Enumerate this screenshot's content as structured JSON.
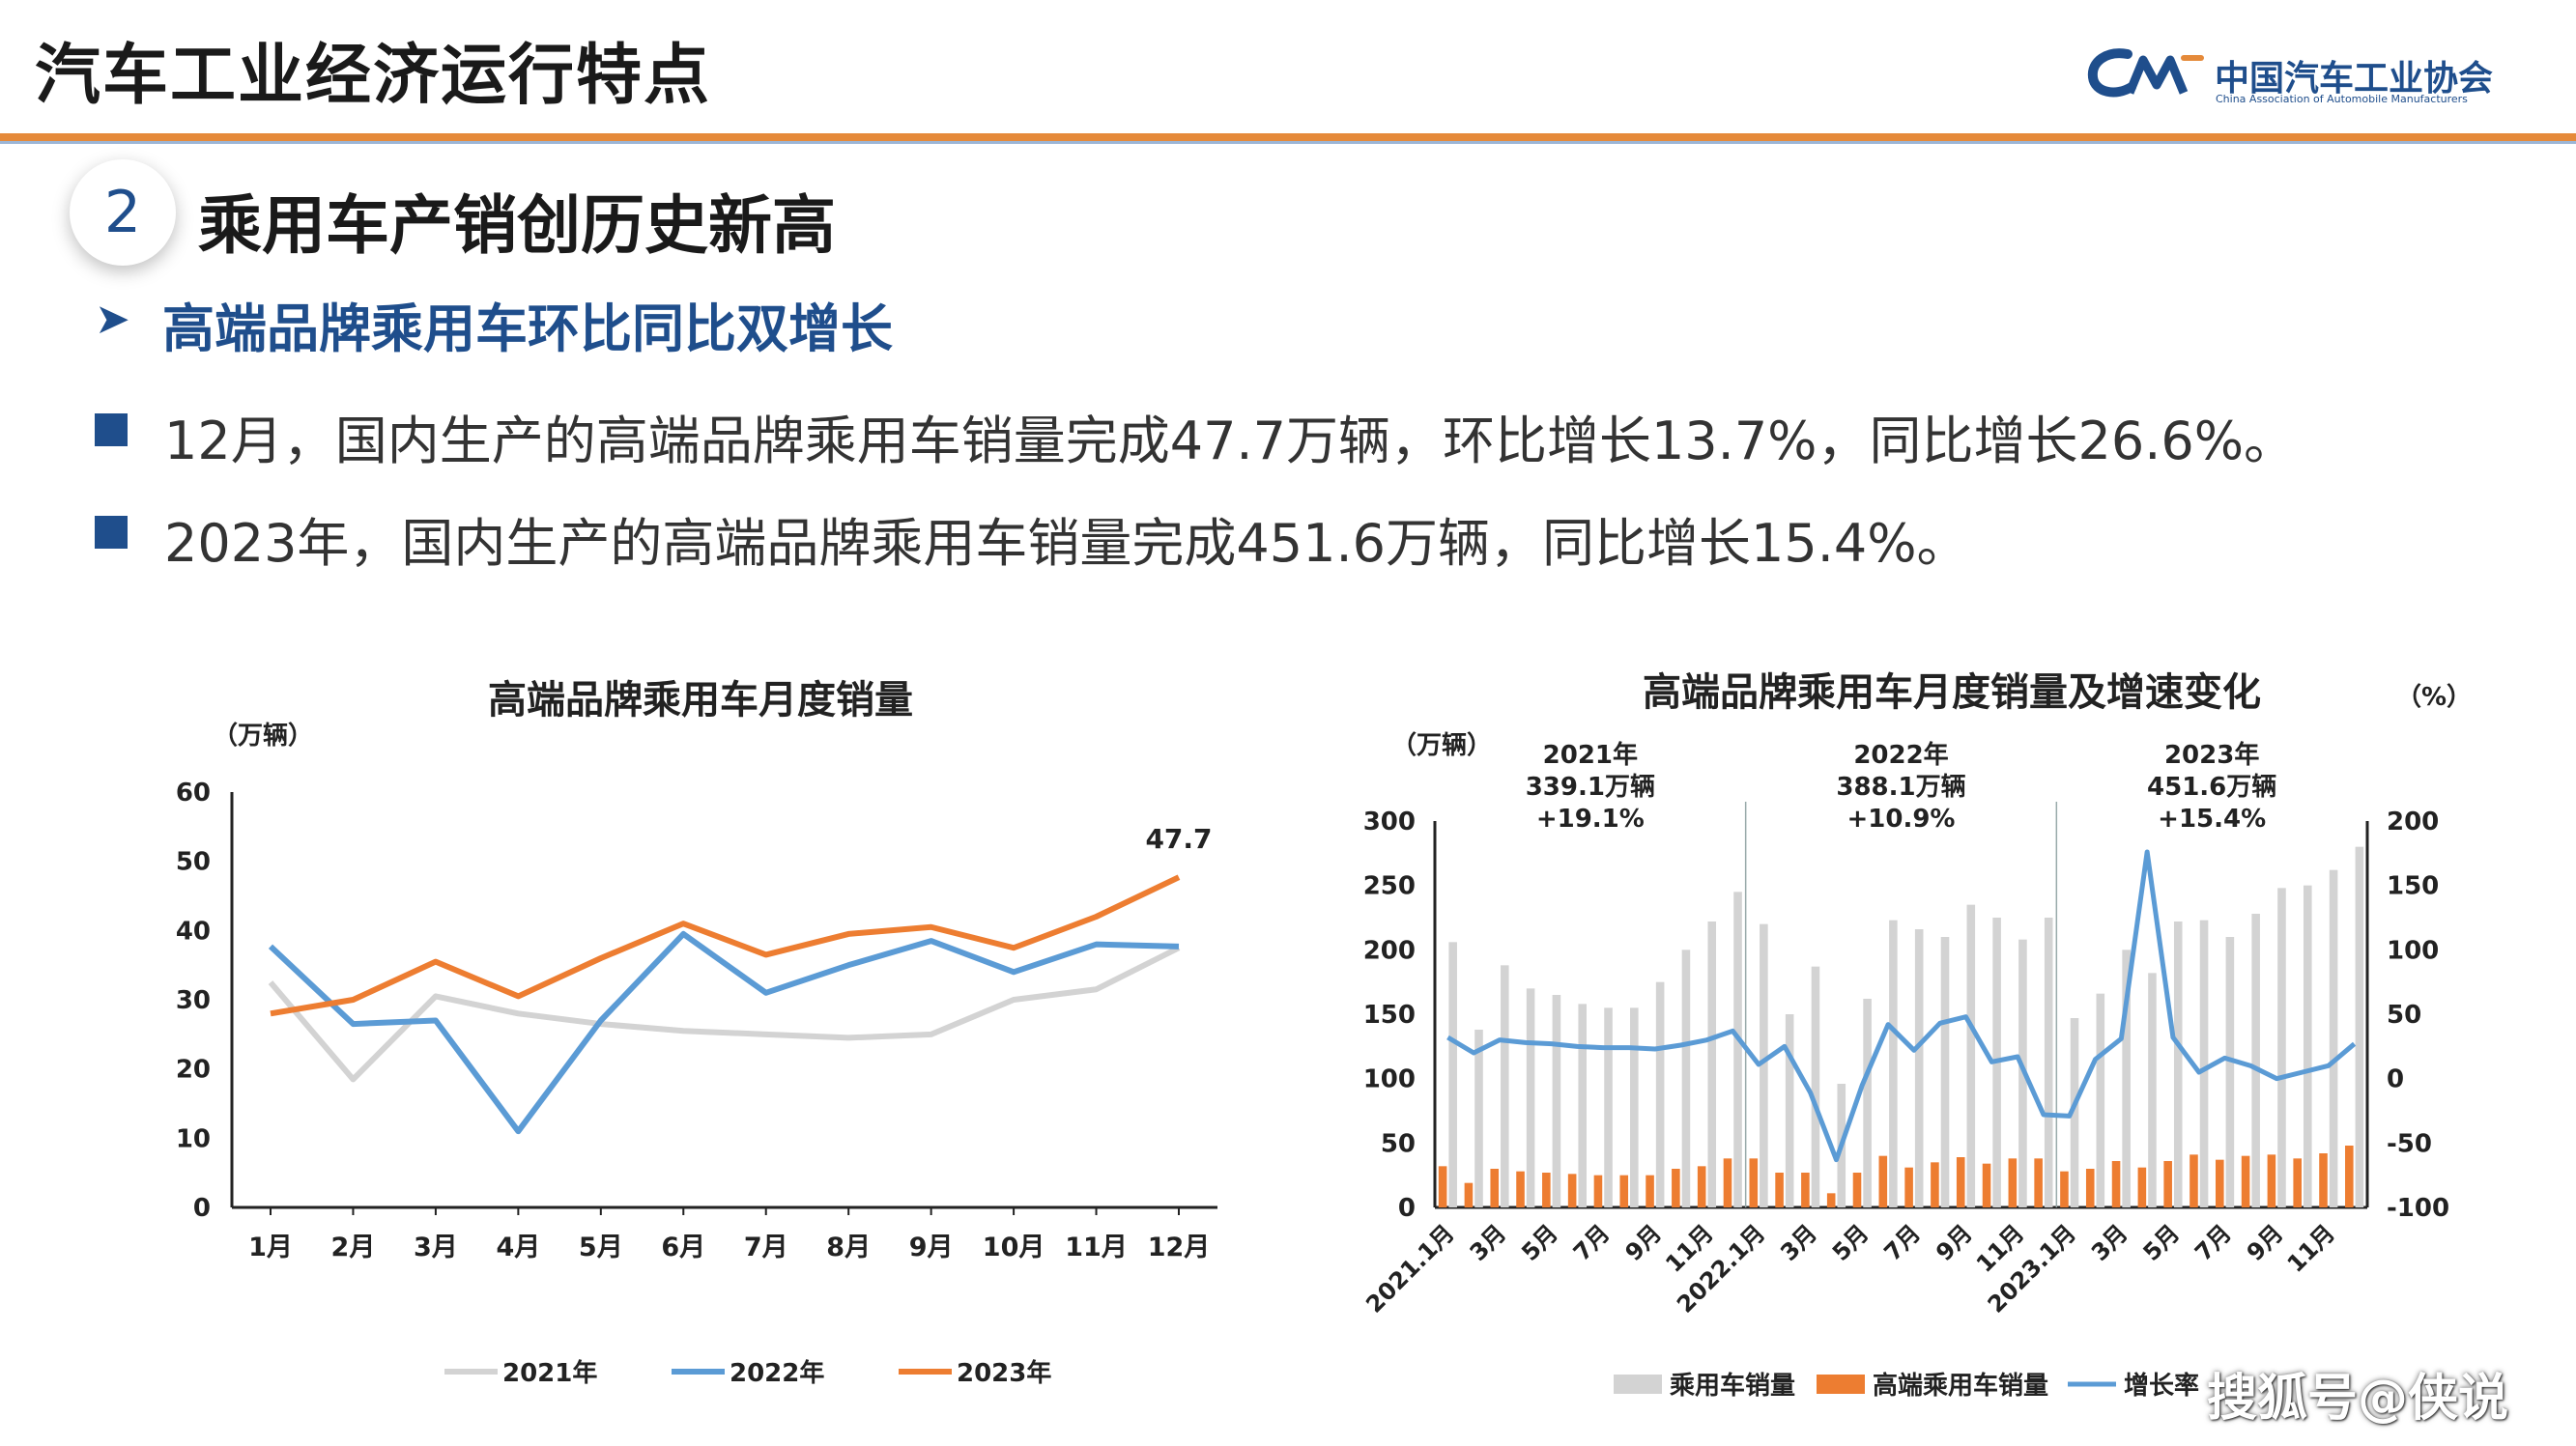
{
  "header": {
    "title": "汽车工业经济运行特点"
  },
  "logo": {
    "name_cn": "中国汽车工业协会",
    "name_en": "China Association of Automobile Manufacturers"
  },
  "section": {
    "number": "2",
    "title": "乘用车产销创历史新高"
  },
  "subtitle": "高端品牌乘用车环比同比双增长",
  "bullets": [
    "12月，国内生产的高端品牌乘用车销量完成47.7万辆，环比增长13.7%，同比增长26.6%。",
    "2023年，国内生产的高端品牌乘用车销量完成451.6万辆，同比增长15.4%。"
  ],
  "colors": {
    "accent": "#e58a3a",
    "brand": "#1f4e8c",
    "gray": "#d3d3d3",
    "blue": "#5b9bd5",
    "orange": "#ed7d31"
  },
  "chart_data": [
    {
      "type": "line",
      "title": "高端品牌乘用车月度销量",
      "unit": "（万辆）",
      "categories": [
        "1月",
        "2月",
        "3月",
        "4月",
        "5月",
        "6月",
        "7月",
        "8月",
        "9月",
        "10月",
        "11月",
        "12月"
      ],
      "ylim": [
        0,
        60
      ],
      "yticks": [
        0,
        10,
        20,
        30,
        40,
        50,
        60
      ],
      "series": [
        {
          "name": "2021年",
          "values": [
            32.5,
            18.5,
            30.5,
            28.0,
            26.5,
            25.5,
            25.0,
            24.5,
            25.0,
            30.0,
            31.5,
            37.5
          ]
        },
        {
          "name": "2022年",
          "values": [
            37.7,
            26.5,
            27.0,
            11.0,
            27.0,
            39.5,
            31.0,
            35.0,
            38.5,
            34.0,
            38.0,
            37.7
          ]
        },
        {
          "name": "2023年",
          "values": [
            28.0,
            30.0,
            35.5,
            30.5,
            36.0,
            41.0,
            36.5,
            39.5,
            40.5,
            37.5,
            42.0,
            47.7
          ]
        }
      ],
      "data_label": "47.7",
      "legend_position": "bottom"
    },
    {
      "type": "bar",
      "title": "高端品牌乘用车月度销量及增速变化",
      "unit_left": "（万辆）",
      "unit_right": "（%）",
      "tick_labels": [
        "2021.1月",
        "3月",
        "5月",
        "7月",
        "9月",
        "11月",
        "2022.1月",
        "3月",
        "5月",
        "7月",
        "9月",
        "11月",
        "2023.1月",
        "3月",
        "5月",
        "7月",
        "9月",
        "11月"
      ],
      "ylim": [
        0,
        300
      ],
      "yticks": [
        0,
        50,
        100,
        150,
        200,
        250,
        300
      ],
      "y2lim": [
        -100,
        200
      ],
      "y2ticks": [
        -100,
        -50,
        0,
        50,
        100,
        150,
        200
      ],
      "annotations": [
        {
          "year": "2021年",
          "total": "339.1万辆",
          "growth": "+19.1%"
        },
        {
          "year": "2022年",
          "total": "388.1万辆",
          "growth": "+10.9%"
        },
        {
          "year": "2023年",
          "total": "451.6万辆",
          "growth": "+15.4%"
        }
      ],
      "series": [
        {
          "name": "乘用车销量",
          "values": [
            206,
            138,
            188,
            170,
            165,
            158,
            155,
            155,
            175,
            200,
            222,
            245,
            220,
            150,
            187,
            96,
            162,
            223,
            216,
            210,
            235,
            225,
            208,
            225,
            147,
            166,
            200,
            182,
            222,
            223,
            210,
            228,
            248,
            250,
            262,
            280
          ]
        },
        {
          "name": "高端乘用车销量",
          "values": [
            32,
            19,
            30,
            28,
            27,
            26,
            25,
            25,
            25,
            30,
            32,
            38,
            38,
            27,
            27,
            11,
            27,
            40,
            31,
            35,
            39,
            34,
            38,
            38,
            28,
            30,
            36,
            31,
            36,
            41,
            37,
            40,
            41,
            38,
            42,
            48
          ]
        },
        {
          "name": "增长率",
          "values": [
            32,
            20,
            30,
            28,
            27,
            25,
            24,
            24,
            23,
            26,
            30,
            37,
            11,
            25,
            -11,
            -63,
            -5,
            42,
            22,
            43,
            48,
            13,
            17,
            -28,
            -29,
            15,
            31,
            176,
            32,
            5,
            16,
            10,
            0,
            5,
            10,
            27
          ]
        }
      ],
      "legend_position": "bottom"
    }
  ],
  "watermark": "搜狐号@侠说"
}
